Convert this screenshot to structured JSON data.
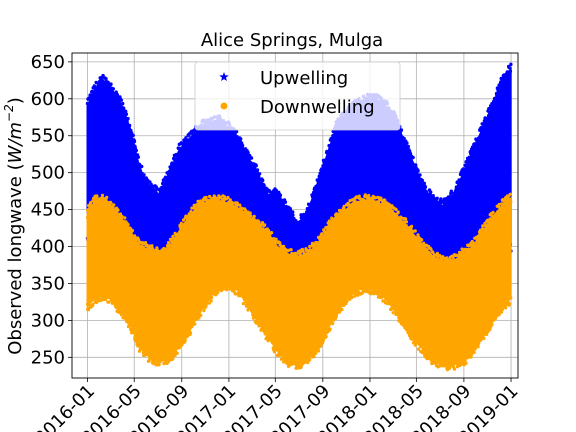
{
  "chart_data": {
    "type": "scatter",
    "title": "Alice Springs, Mulga",
    "xlabel": "",
    "ylabel": "Observed longwave (W/m⁻²)",
    "ylabel_text": "Observed longwave (",
    "ylabel_unit": "W/m",
    "ylabel_exp": "−2",
    "ylabel_close": ")",
    "xlim": [
      "2015-11-22",
      "2019-01-19"
    ],
    "ylim": [
      222,
      662
    ],
    "yticks": [
      250,
      300,
      350,
      400,
      450,
      500,
      550,
      600,
      650
    ],
    "xticks": [
      {
        "date": "2016-01-01",
        "label": "2016-01"
      },
      {
        "date": "2016-05-01",
        "label": "2016-05"
      },
      {
        "date": "2016-09-01",
        "label": "2016-09"
      },
      {
        "date": "2017-01-01",
        "label": "2017-01"
      },
      {
        "date": "2017-05-01",
        "label": "2017-05"
      },
      {
        "date": "2017-09-01",
        "label": "2017-09"
      },
      {
        "date": "2018-01-01",
        "label": "2018-01"
      },
      {
        "date": "2018-05-01",
        "label": "2018-05"
      },
      {
        "date": "2018-09-01",
        "label": "2018-09"
      },
      {
        "date": "2019-01-01",
        "label": "2019-01"
      }
    ],
    "grid": true,
    "legend_position": "top-center",
    "series": [
      {
        "name": "Upwelling",
        "marker": "star",
        "color": "#0000ff",
        "envelope": {
          "x": [
            "2016-01-01",
            "2016-01-20",
            "2016-02-10",
            "2016-03-01",
            "2016-03-25",
            "2016-04-20",
            "2016-05-15",
            "2016-06-10",
            "2016-07-05",
            "2016-08-01",
            "2016-08-25",
            "2016-09-20",
            "2016-10-15",
            "2016-11-10",
            "2016-12-05",
            "2017-01-01",
            "2017-01-25",
            "2017-02-20",
            "2017-03-15",
            "2017-04-10",
            "2017-05-05",
            "2017-06-01",
            "2017-06-25",
            "2017-07-20",
            "2017-08-15",
            "2017-09-10",
            "2017-10-05",
            "2017-11-01",
            "2017-11-25",
            "2017-12-20",
            "2018-01-15",
            "2018-02-10",
            "2018-03-05",
            "2018-04-01",
            "2018-04-25",
            "2018-05-20",
            "2018-06-15",
            "2018-07-10",
            "2018-08-05",
            "2018-09-01",
            "2018-09-25",
            "2018-10-20",
            "2018-11-15",
            "2018-12-10",
            "2018-12-31"
          ],
          "high": [
            590,
            612,
            625,
            615,
            595,
            560,
            505,
            480,
            470,
            500,
            530,
            545,
            560,
            568,
            570,
            560,
            545,
            520,
            500,
            470,
            470,
            450,
            430,
            440,
            480,
            520,
            560,
            580,
            590,
            598,
            600,
            590,
            575,
            540,
            510,
            480,
            460,
            455,
            470,
            500,
            530,
            560,
            590,
            625,
            640
          ],
          "low": [
            410,
            430,
            440,
            430,
            410,
            390,
            370,
            360,
            355,
            360,
            370,
            380,
            400,
            410,
            420,
            415,
            400,
            390,
            380,
            370,
            360,
            355,
            350,
            360,
            370,
            380,
            390,
            410,
            415,
            420,
            415,
            405,
            395,
            380,
            365,
            350,
            340,
            335,
            330,
            330,
            340,
            355,
            370,
            390,
            400
          ]
        }
      },
      {
        "name": "Downwelling",
        "marker": "circle",
        "color": "#ffa500",
        "envelope": {
          "x": [
            "2016-01-01",
            "2016-01-20",
            "2016-02-10",
            "2016-03-01",
            "2016-03-25",
            "2016-04-20",
            "2016-05-15",
            "2016-06-10",
            "2016-07-05",
            "2016-08-01",
            "2016-08-25",
            "2016-09-20",
            "2016-10-15",
            "2016-11-10",
            "2016-12-05",
            "2017-01-01",
            "2017-01-25",
            "2017-02-20",
            "2017-03-15",
            "2017-04-10",
            "2017-05-05",
            "2017-06-01",
            "2017-06-25",
            "2017-07-20",
            "2017-08-15",
            "2017-09-10",
            "2017-10-05",
            "2017-11-01",
            "2017-11-25",
            "2017-12-20",
            "2018-01-15",
            "2018-02-10",
            "2018-03-05",
            "2018-04-01",
            "2018-04-25",
            "2018-05-20",
            "2018-06-15",
            "2018-07-10",
            "2018-08-05",
            "2018-09-01",
            "2018-09-25",
            "2018-10-20",
            "2018-11-15",
            "2018-12-10",
            "2018-12-31"
          ],
          "high": [
            445,
            460,
            462,
            455,
            440,
            420,
            400,
            395,
            390,
            400,
            420,
            440,
            455,
            460,
            462,
            458,
            450,
            440,
            430,
            420,
            400,
            390,
            385,
            390,
            400,
            420,
            440,
            450,
            460,
            462,
            460,
            455,
            445,
            430,
            415,
            400,
            385,
            380,
            380,
            390,
            400,
            420,
            440,
            455,
            465
          ],
          "low": [
            320,
            330,
            335,
            330,
            315,
            295,
            265,
            250,
            245,
            250,
            265,
            285,
            310,
            330,
            345,
            350,
            340,
            320,
            300,
            280,
            260,
            245,
            240,
            245,
            260,
            285,
            310,
            330,
            340,
            345,
            340,
            330,
            315,
            295,
            275,
            260,
            245,
            240,
            240,
            245,
            260,
            280,
            300,
            320,
            330
          ]
        }
      }
    ]
  }
}
